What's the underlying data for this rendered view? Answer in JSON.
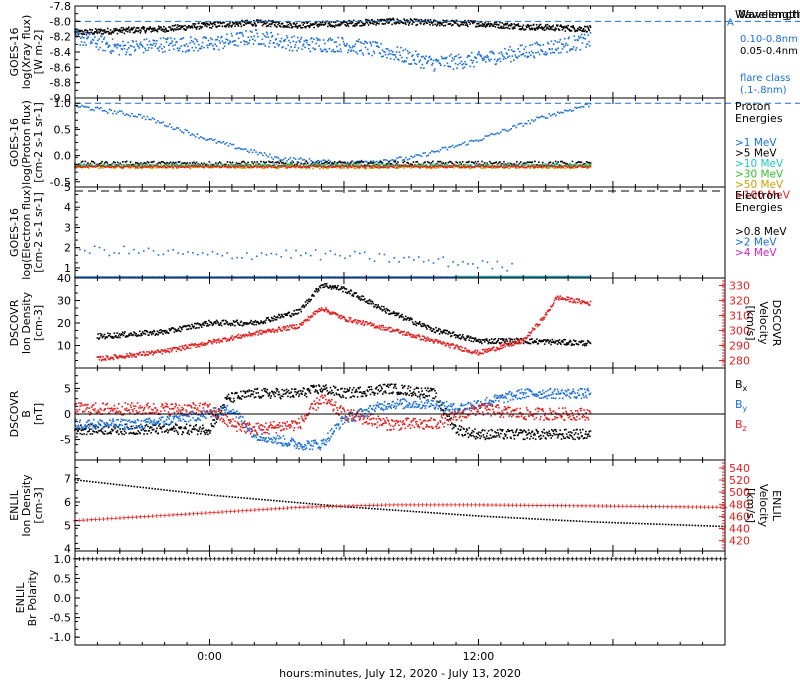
{
  "chart_data": [
    {
      "type": "scatter",
      "ylabel": [
        "GOES-16",
        "log(Xray flux)",
        "[W m-2]"
      ],
      "ylim": [
        -9.0,
        -7.8
      ],
      "yticks": [
        "-7.8",
        "-8.0",
        "-8.2",
        "-8.4",
        "-8.6",
        "-8.8",
        "-9.0"
      ],
      "legend_title": "Wavelength",
      "legend": [
        {
          "label": "0.10-0.8nm",
          "color": "#000000"
        },
        {
          "label": "0.05-0.4nm",
          "color": "#1a6fd6"
        }
      ],
      "threshold": {
        "value": -8.0,
        "label": "A",
        "color": "#1a6fd6"
      },
      "extra_label": [
        "flare class",
        "(.1-.8nm)"
      ],
      "series": [
        {
          "name": "0.10-0.8nm",
          "color": "#000000",
          "start_hour": -6.0,
          "end_hour": 17.0,
          "hours": [
            -6,
            -4,
            -2,
            0,
            2,
            4,
            6,
            8,
            10,
            12,
            14,
            16,
            17
          ],
          "values": [
            -8.15,
            -8.12,
            -8.1,
            -8.05,
            -8.02,
            -8.05,
            -8.03,
            -8.0,
            -8.02,
            -8.03,
            -8.07,
            -8.09,
            -8.1
          ],
          "noise": 0.04,
          "n": 900
        },
        {
          "name": "0.05-0.4nm",
          "color": "#1a6fd6",
          "start_hour": -6.0,
          "end_hour": 17.0,
          "hours": [
            -6,
            -4,
            -2,
            0,
            2,
            4,
            6,
            8,
            10,
            12,
            14,
            16,
            17
          ],
          "values": [
            -8.2,
            -8.35,
            -8.3,
            -8.3,
            -8.2,
            -8.3,
            -8.3,
            -8.4,
            -8.55,
            -8.5,
            -8.4,
            -8.3,
            -8.25
          ],
          "noise": 0.1,
          "n": 700
        }
      ]
    },
    {
      "type": "scatter",
      "ylabel": [
        "GOES-16",
        "log(Proton flux)",
        "[cm-2 s-1 sr-1]"
      ],
      "ylim": [
        -0.6,
        1.1
      ],
      "yticks": [
        "1.0",
        "0.5",
        "0.0",
        "-0.5"
      ],
      "legend_title": [
        "Proton",
        "Energies"
      ],
      "legend": [
        {
          "label": ">1 MeV",
          "color": "#1a6fd6"
        },
        {
          "label": ">5 MeV",
          "color": "#000000"
        },
        {
          "label": ">10 MeV",
          "color": "#19c8c8"
        },
        {
          "label": ">30 MeV",
          "color": "#2fc22f"
        },
        {
          "label": ">50 MeV",
          "color": "#c8a000"
        },
        {
          "label": ">100 MeV",
          "color": "#e02020"
        }
      ],
      "threshold": {
        "value": 1.0,
        "label": "",
        "color": "#1a6fd6"
      },
      "series": [
        {
          "name": ">1 MeV",
          "color": "#1a6fd6",
          "start_hour": -6.0,
          "end_hour": 17.0,
          "hours": [
            -6,
            -3,
            0,
            3,
            6,
            9,
            12,
            15,
            17
          ],
          "values": [
            0.95,
            0.75,
            0.3,
            -0.05,
            -0.15,
            -0.05,
            0.3,
            0.75,
            0.98
          ],
          "noise": 0.04,
          "n": 300
        },
        {
          "name": ">5 MeV",
          "color": "#000000",
          "start_hour": -6.0,
          "end_hour": 17.0,
          "hours": [
            -6,
            17
          ],
          "values": [
            -0.15,
            -0.15
          ],
          "noise": 0.04,
          "n": 400
        },
        {
          "name": ">10 MeV",
          "color": "#19c8c8",
          "start_hour": -6.0,
          "end_hour": 17.0,
          "hours": [
            -6,
            17
          ],
          "values": [
            -0.19,
            -0.19
          ],
          "noise": 0.03,
          "n": 300
        },
        {
          "name": ">30 MeV",
          "color": "#2fc22f",
          "start_hour": -6.0,
          "end_hour": 17.0,
          "hours": [
            -6,
            17
          ],
          "values": [
            -0.2,
            -0.2
          ],
          "noise": 0.03,
          "n": 300
        },
        {
          "name": ">50 MeV",
          "color": "#c8a000",
          "start_hour": -6.0,
          "end_hour": 17.0,
          "hours": [
            -6,
            17
          ],
          "values": [
            -0.22,
            -0.22
          ],
          "noise": 0.03,
          "n": 300
        },
        {
          "name": ">100 MeV",
          "color": "#e02020",
          "start_hour": -6.0,
          "end_hour": 17.0,
          "hours": [
            -6,
            17
          ],
          "values": [
            -0.21,
            -0.21
          ],
          "noise": 0.02,
          "n": 400
        }
      ]
    },
    {
      "type": "scatter",
      "ylabel": [
        "GOES-16",
        "log(Electron flux)",
        "[cm-2 s-1 sr-1]"
      ],
      "ylim": [
        0.5,
        5.0
      ],
      "yticks": [
        "5",
        "4",
        "3",
        "2",
        "1"
      ],
      "legend_title": [
        "Electron",
        "Energies"
      ],
      "legend": [
        {
          "label": ">0.8 MeV",
          "color": "#000000"
        },
        {
          "label": ">2 MeV",
          "color": "#1a6fd6"
        },
        {
          "label": ">4 MeV",
          "color": "#d020d0"
        }
      ],
      "hline": {
        "value": 4.8,
        "color": "#000000"
      },
      "series": [
        {
          "name": ">2 MeV",
          "color": "#1a6fd6",
          "start_hour": -6.0,
          "end_hour": 13.5,
          "hours": [
            -6,
            -3,
            0,
            3,
            6,
            9,
            12,
            13.5
          ],
          "values": [
            1.9,
            1.8,
            1.6,
            1.7,
            1.6,
            1.4,
            1.2,
            1.0
          ],
          "noise": 0.25,
          "n": 90
        },
        {
          "name": ">2 MeV base",
          "color": "#1a6fd6",
          "start_hour": -6.0,
          "end_hour": 17.0,
          "hours": [
            -6,
            17
          ],
          "values": [
            0.55,
            0.55
          ],
          "noise": 0.0,
          "n": 300
        },
        {
          "name": ">4 MeV",
          "color": "#19a0a0",
          "start_hour": 11.0,
          "end_hour": 17.0,
          "hours": [
            11,
            17
          ],
          "values": [
            0.57,
            0.57
          ],
          "noise": 0.0,
          "n": 80
        }
      ]
    },
    {
      "type": "scatter",
      "ylabel": [
        "DSCOVR",
        "Ion Density",
        "[cm-3]"
      ],
      "ylim": [
        0,
        40
      ],
      "yticks": [
        "40",
        "30",
        "20",
        "10"
      ],
      "y2label": [
        "DSCOVR",
        "Velocity",
        "[km/s]"
      ],
      "y2lim": [
        275,
        335
      ],
      "y2ticks": [
        "330",
        "320",
        "310",
        "300",
        "290",
        "280"
      ],
      "series": [
        {
          "name": "density",
          "color": "#000000",
          "axis": "left",
          "start_hour": -5.0,
          "end_hour": 17.0,
          "hours": [
            -5,
            -2,
            0,
            2,
            4,
            5,
            6,
            8,
            10,
            12,
            14,
            17
          ],
          "values": [
            14,
            16,
            20,
            20,
            25,
            37,
            35,
            25,
            17,
            12,
            12,
            11
          ],
          "noise": 1.2,
          "n": 700
        },
        {
          "name": "velocity",
          "color": "#e02020",
          "axis": "right",
          "start_hour": -5.0,
          "end_hour": 17.0,
          "hours": [
            -5,
            -2,
            0,
            2,
            4,
            5,
            6,
            8,
            10,
            12,
            14,
            15,
            15.5,
            17
          ],
          "values": [
            281,
            286,
            292,
            298,
            303,
            315,
            308,
            301,
            293,
            285,
            293,
            310,
            322,
            318
          ],
          "noise": 1.5,
          "n": 700
        }
      ]
    },
    {
      "type": "scatter",
      "ylabel": [
        "DSCOVR",
        "B",
        "[nT]"
      ],
      "ylim": [
        -9,
        9
      ],
      "yticks": [
        "5",
        "0",
        "-5"
      ],
      "hline": {
        "value": 0,
        "color": "#000000"
      },
      "legend": [
        {
          "label": "Bx",
          "color": "#000000"
        },
        {
          "label": "By",
          "color": "#1a6fd6"
        },
        {
          "label": "Bz",
          "color": "#e02020"
        }
      ],
      "series": [
        {
          "name": "Bx",
          "color": "#000000",
          "start_hour": -6.0,
          "end_hour": 17.0,
          "hours": [
            -6,
            -3,
            0,
            0.8,
            2,
            4,
            5,
            6,
            8,
            10,
            11,
            12,
            14,
            17
          ],
          "values": [
            -3,
            -3,
            -3,
            3,
            4,
            4,
            5,
            4,
            5,
            4,
            -3,
            -4,
            -4,
            -4
          ],
          "noise": 1.0,
          "n": 800
        },
        {
          "name": "By",
          "color": "#1a6fd6",
          "start_hour": -6.0,
          "end_hour": 17.0,
          "hours": [
            -6,
            -3,
            0,
            1,
            2,
            4,
            5,
            6,
            8,
            10,
            11,
            12,
            14,
            17
          ],
          "values": [
            -2,
            -2,
            0,
            1,
            -4,
            -6,
            -6,
            -1,
            2,
            2,
            1,
            2,
            4,
            4
          ],
          "noise": 1.0,
          "n": 800
        },
        {
          "name": "Bz",
          "color": "#e02020",
          "start_hour": -6.0,
          "end_hour": 17.0,
          "hours": [
            -6,
            -3,
            0,
            1,
            2,
            4,
            5,
            6,
            8,
            10,
            12,
            14,
            17
          ],
          "values": [
            1,
            1,
            1,
            -2,
            -3,
            -2,
            3,
            0,
            -2,
            -2,
            1,
            0,
            0
          ],
          "noise": 1.2,
          "n": 800
        }
      ]
    },
    {
      "type": "scatter",
      "ylabel": [
        "ENLIL",
        "Ion Density",
        "[cm-3]"
      ],
      "ylim": [
        3.9,
        7.8
      ],
      "yticks": [
        "7",
        "6",
        "5",
        "4"
      ],
      "y2label": [
        "ENLIL",
        "Velocity",
        "[km/s]"
      ],
      "y2lim": [
        403,
        553
      ],
      "y2ticks": [
        "540",
        "520",
        "500",
        "480",
        "460",
        "440",
        "420"
      ],
      "series": [
        {
          "name": "density",
          "color": "#000000",
          "axis": "left",
          "start_hour": -6.0,
          "end_hour": 23.0,
          "hours": [
            -6,
            0,
            6,
            12,
            17,
            23
          ],
          "values": [
            6.95,
            6.3,
            5.8,
            5.4,
            5.15,
            4.95
          ],
          "noise": 0.0,
          "n": 220,
          "marker": "dot"
        },
        {
          "name": "velocity",
          "color": "#e02020",
          "axis": "right",
          "start_hour": -6.0,
          "end_hour": 23.0,
          "hours": [
            -6,
            0,
            4,
            8,
            12,
            18,
            23
          ],
          "values": [
            453,
            466,
            475,
            479,
            479,
            477,
            475
          ],
          "noise": 0.0,
          "n": 160,
          "marker": "plus"
        }
      ]
    },
    {
      "type": "scatter",
      "ylabel": [
        "ENLIL",
        "Br Polarity"
      ],
      "ylim": [
        -1.2,
        1.2
      ],
      "yticks": [
        "1.0",
        "0.5",
        "0.0",
        "-0.5",
        "-1.0"
      ],
      "series": [
        {
          "name": "polarity",
          "color": "#000000",
          "start_hour": -6.0,
          "end_hour": 23.0,
          "hours": [
            -6,
            23
          ],
          "values": [
            1.0,
            1.0
          ],
          "noise": 0.0,
          "n": 150,
          "marker": "plus"
        }
      ]
    }
  ],
  "x_axis": {
    "range_hours": [
      -6.0,
      23.0
    ],
    "ticks": [
      {
        "hour": 0,
        "label": "0:00"
      },
      {
        "hour": 12,
        "label": "12:00"
      }
    ],
    "label": "hours:minutes, July 12, 2020 - July 13, 2020"
  }
}
